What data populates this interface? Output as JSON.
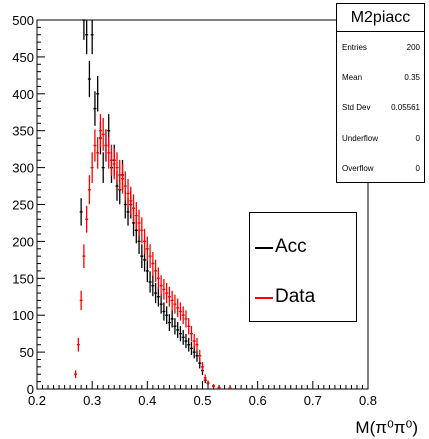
{
  "chart_data": {
    "type": "histogram",
    "title": "",
    "xlabel": "M(π⁰π⁰)",
    "xlim": [
      0.2,
      0.8
    ],
    "ylim": [
      0,
      500
    ],
    "xticks": [
      0.2,
      0.3,
      0.4,
      0.5,
      0.6,
      0.7,
      0.8
    ],
    "yticks": [
      0,
      50,
      100,
      150,
      200,
      250,
      300,
      350,
      400,
      450,
      500
    ],
    "legend_position": "right-center",
    "series": [
      {
        "name": "Acc",
        "color": "#000000",
        "points": [
          [
            0.28,
            240
          ],
          [
            0.285,
            500
          ],
          [
            0.29,
            480
          ],
          [
            0.295,
            420
          ],
          [
            0.3,
            480
          ],
          [
            0.305,
            380
          ],
          [
            0.31,
            400
          ],
          [
            0.315,
            340
          ],
          [
            0.32,
            300
          ],
          [
            0.325,
            330
          ],
          [
            0.33,
            350
          ],
          [
            0.335,
            300
          ],
          [
            0.34,
            310
          ],
          [
            0.345,
            275
          ],
          [
            0.35,
            270
          ],
          [
            0.355,
            290
          ],
          [
            0.36,
            250
          ],
          [
            0.365,
            240
          ],
          [
            0.37,
            250
          ],
          [
            0.375,
            225
          ],
          [
            0.38,
            215
          ],
          [
            0.385,
            200
          ],
          [
            0.39,
            180
          ],
          [
            0.395,
            175
          ],
          [
            0.4,
            160
          ],
          [
            0.405,
            145
          ],
          [
            0.41,
            140
          ],
          [
            0.415,
            130
          ],
          [
            0.42,
            125
          ],
          [
            0.425,
            115
          ],
          [
            0.43,
            105
          ],
          [
            0.435,
            100
          ],
          [
            0.44,
            90
          ],
          [
            0.445,
            95
          ],
          [
            0.45,
            85
          ],
          [
            0.455,
            80
          ],
          [
            0.46,
            75
          ],
          [
            0.465,
            70
          ],
          [
            0.47,
            65
          ],
          [
            0.475,
            60
          ],
          [
            0.48,
            55
          ],
          [
            0.485,
            50
          ],
          [
            0.49,
            45
          ],
          [
            0.495,
            35
          ],
          [
            0.5,
            25
          ],
          [
            0.505,
            12
          ],
          [
            0.51,
            8
          ],
          [
            0.52,
            4
          ],
          [
            0.53,
            2
          ],
          [
            0.55,
            1
          ]
        ]
      },
      {
        "name": "Data",
        "color": "#ff0000",
        "points": [
          [
            0.27,
            20
          ],
          [
            0.275,
            60
          ],
          [
            0.28,
            120
          ],
          [
            0.285,
            180
          ],
          [
            0.29,
            230
          ],
          [
            0.295,
            270
          ],
          [
            0.3,
            300
          ],
          [
            0.305,
            330
          ],
          [
            0.31,
            320
          ],
          [
            0.315,
            350
          ],
          [
            0.32,
            345
          ],
          [
            0.325,
            330
          ],
          [
            0.33,
            320
          ],
          [
            0.335,
            310
          ],
          [
            0.34,
            305
          ],
          [
            0.345,
            300
          ],
          [
            0.35,
            290
          ],
          [
            0.355,
            285
          ],
          [
            0.36,
            275
          ],
          [
            0.365,
            265
          ],
          [
            0.37,
            255
          ],
          [
            0.375,
            245
          ],
          [
            0.38,
            235
          ],
          [
            0.385,
            225
          ],
          [
            0.39,
            215
          ],
          [
            0.395,
            200
          ],
          [
            0.4,
            190
          ],
          [
            0.405,
            180
          ],
          [
            0.41,
            170
          ],
          [
            0.415,
            160
          ],
          [
            0.42,
            150
          ],
          [
            0.425,
            140
          ],
          [
            0.43,
            135
          ],
          [
            0.435,
            130
          ],
          [
            0.44,
            125
          ],
          [
            0.445,
            120
          ],
          [
            0.45,
            115
          ],
          [
            0.455,
            110
          ],
          [
            0.46,
            105
          ],
          [
            0.465,
            100
          ],
          [
            0.47,
            95
          ],
          [
            0.475,
            85
          ],
          [
            0.48,
            75
          ],
          [
            0.485,
            65
          ],
          [
            0.49,
            60
          ],
          [
            0.495,
            45
          ],
          [
            0.5,
            30
          ],
          [
            0.505,
            15
          ],
          [
            0.51,
            8
          ],
          [
            0.52,
            4
          ],
          [
            0.53,
            2
          ],
          [
            0.55,
            1
          ]
        ]
      }
    ]
  },
  "stats": {
    "title": "M2piacc",
    "rows": [
      {
        "label": "Entries",
        "value": "200"
      },
      {
        "label": "Mean",
        "value": "0.35"
      },
      {
        "label": "Std Dev",
        "value": "0.05561"
      },
      {
        "label": "Underflow",
        "value": "0"
      },
      {
        "label": "Overflow",
        "value": "0"
      }
    ]
  },
  "legend": {
    "items": [
      {
        "label": "Acc",
        "color": "#000000"
      },
      {
        "label": "Data",
        "color": "#ff0000"
      }
    ]
  }
}
